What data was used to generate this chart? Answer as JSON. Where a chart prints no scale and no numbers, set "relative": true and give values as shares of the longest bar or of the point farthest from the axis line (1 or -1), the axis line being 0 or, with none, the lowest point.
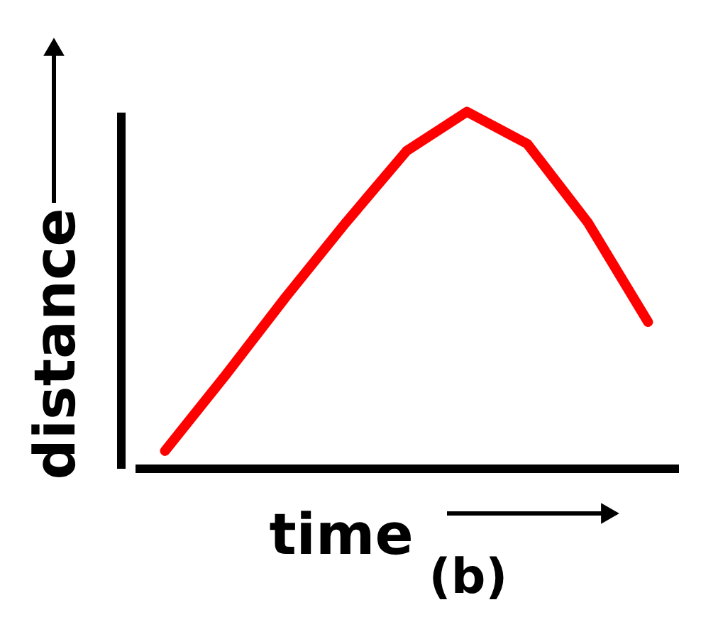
{
  "chart_data": {
    "type": "line",
    "relative": true,
    "xlabel": "time",
    "ylabel": "distance",
    "annotations": [
      "(b)"
    ],
    "categories": [
      null,
      null,
      null,
      null,
      null,
      null,
      null,
      null,
      null
    ],
    "series": [
      {
        "color": "#ff0000",
        "values": [
          0.048,
          0.26,
          0.48,
          0.69,
          0.89,
          1.0,
          0.91,
          0.69,
          0.41
        ]
      }
    ],
    "grid": false,
    "marker": "none",
    "line_style": "solid"
  }
}
